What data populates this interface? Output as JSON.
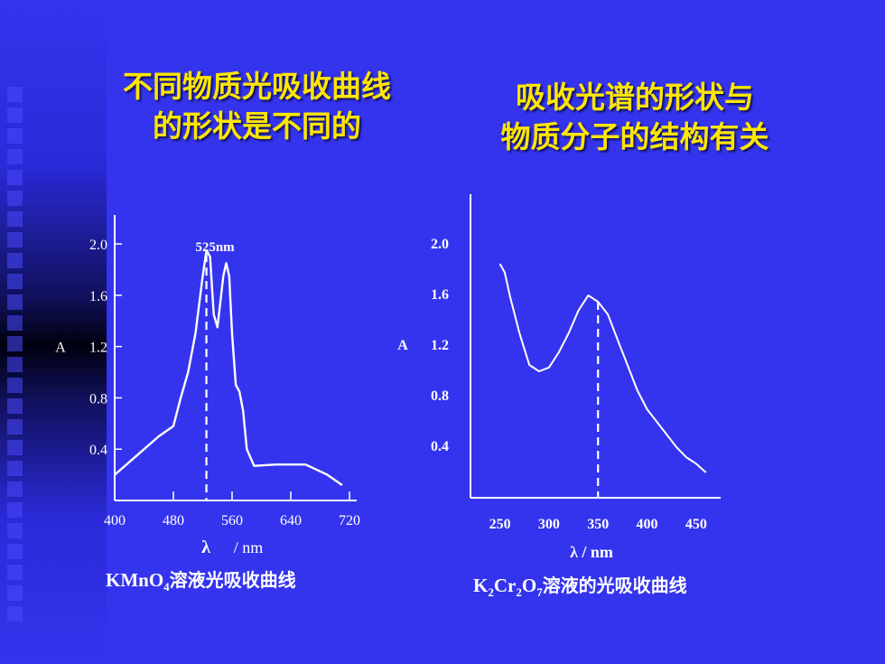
{
  "slide": {
    "left_heading": [
      "不同物质光吸收曲线",
      "的形状是不同的"
    ],
    "right_heading": [
      "吸收光谱的形状与",
      "物质分子的结构有关"
    ],
    "colors": {
      "background": "#3434ee",
      "heading": "#ffe600",
      "curve": "#ffffff"
    }
  },
  "chart_data": [
    {
      "type": "line",
      "title": "",
      "caption": {
        "formula": "KMnO",
        "sub1": "4",
        "text": "溶液光吸收曲线"
      },
      "ylabel": "A",
      "xlabel": "λ",
      "xunit": "/ nm",
      "x_ticks": [
        400,
        480,
        560,
        640,
        720
      ],
      "y_ticks": [
        0.4,
        0.8,
        1.2,
        1.6,
        2.0
      ],
      "y_tick_labels": [
        "0.4",
        "0.8",
        "1.2",
        "1.6",
        "2.0"
      ],
      "xlim": [
        400,
        720
      ],
      "ylim": [
        0,
        2.0
      ],
      "peak_label": "525nm",
      "peak_x": 525,
      "series": [
        {
          "x": [
            400,
            430,
            460,
            480,
            490,
            500,
            510,
            520,
            525,
            530,
            535,
            540,
            548,
            552,
            556,
            560,
            565,
            570,
            575,
            580,
            590,
            620,
            660,
            690,
            710
          ],
          "y": [
            0.2,
            0.35,
            0.5,
            0.58,
            0.8,
            1.0,
            1.3,
            1.75,
            1.95,
            1.9,
            1.45,
            1.35,
            1.75,
            1.85,
            1.75,
            1.3,
            0.9,
            0.85,
            0.7,
            0.4,
            0.27,
            0.28,
            0.28,
            0.2,
            0.12
          ]
        }
      ]
    },
    {
      "type": "line",
      "title": "",
      "caption": {
        "formula1": "K",
        "sub1": "2",
        "formula2": "Cr",
        "sub2": "2",
        "formula3": "O",
        "sub3": "7",
        "text": "溶液的光吸收曲线"
      },
      "ylabel": "A",
      "xlabel": "λ / nm",
      "x_ticks": [
        250,
        300,
        350,
        400,
        450
      ],
      "y_ticks": [
        0.4,
        0.8,
        1.2,
        1.6,
        2.0
      ],
      "y_tick_labels": [
        "0.4",
        "0.8",
        "1.2",
        "1.6",
        "2.0"
      ],
      "xlim": [
        220,
        475
      ],
      "ylim": [
        0,
        2.4
      ],
      "peak_x": 350,
      "series": [
        {
          "x": [
            250,
            255,
            260,
            265,
            270,
            280,
            290,
            300,
            310,
            320,
            330,
            340,
            350,
            360,
            370,
            380,
            390,
            400,
            410,
            420,
            430,
            440,
            450,
            460
          ],
          "y": [
            1.85,
            1.78,
            1.6,
            1.45,
            1.3,
            1.05,
            1.0,
            1.03,
            1.15,
            1.3,
            1.48,
            1.6,
            1.55,
            1.45,
            1.25,
            1.05,
            0.85,
            0.7,
            0.6,
            0.5,
            0.4,
            0.32,
            0.27,
            0.2
          ]
        }
      ]
    }
  ]
}
